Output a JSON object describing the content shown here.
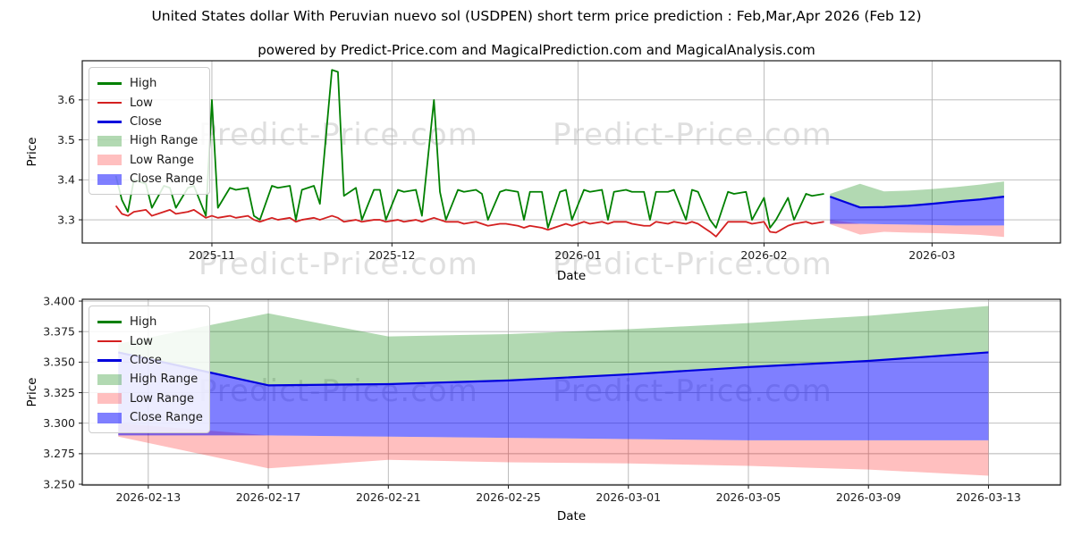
{
  "title": "United States dollar With Peruvian nuevo sol (USDPEN) short term price prediction : Feb,Mar,Apr 2026 (Feb 12)",
  "subtitle": "powered by Predict-Price.com and MagicalPrediction.com and MagicalAnalysis.com",
  "watermark": {
    "text": "Predict-Price.com",
    "color": "#dfdfdf"
  },
  "colors": {
    "high": "#008000",
    "low": "#d42020",
    "close": "#0000dd",
    "high_range": "rgba(0,128,0,0.30)",
    "low_range": "rgba(255,0,0,0.25)",
    "close_range": "rgba(0,0,255,0.50)",
    "grid": "#b5b5b5",
    "frame": "#1a1a1a",
    "tick_text": "#202020"
  },
  "legend": {
    "items": [
      {
        "label": "High",
        "swatch": "high",
        "kind": "line"
      },
      {
        "label": "Low",
        "swatch": "low",
        "kind": "line"
      },
      {
        "label": "Close",
        "swatch": "close",
        "kind": "line"
      },
      {
        "label": "High Range",
        "swatch": "high_range",
        "kind": "patch"
      },
      {
        "label": "Low Range",
        "swatch": "low_range",
        "kind": "patch"
      },
      {
        "label": "Close Range",
        "swatch": "close_range",
        "kind": "patch"
      }
    ]
  },
  "date_base": "day 0 = 2025-10-16, 1 unit = 1 day",
  "chart_data": [
    {
      "type": "line",
      "name": "full-history-and-prediction",
      "xlabel": "Date",
      "ylabel": "Price",
      "xlim_days": [
        -5.6,
        157.4
      ],
      "ylim": [
        3.242,
        3.698
      ],
      "x_ticks": [
        {
          "day": 16,
          "label": "2025-11"
        },
        {
          "day": 46,
          "label": "2025-12"
        },
        {
          "day": 77,
          "label": "2026-01"
        },
        {
          "day": 108,
          "label": "2026-02"
        },
        {
          "day": 136,
          "label": "2026-03"
        }
      ],
      "y_ticks": [
        {
          "value": 3.3,
          "label": "3.3"
        },
        {
          "value": 3.4,
          "label": "3.4"
        },
        {
          "value": 3.5,
          "label": "3.5"
        },
        {
          "value": 3.6,
          "label": "3.6"
        }
      ],
      "grid": true,
      "legend_position": "upper left",
      "series": {
        "history": {
          "days": [
            0,
            1,
            2,
            3,
            5,
            6,
            8,
            9,
            10,
            12,
            13,
            15,
            16,
            17,
            19,
            20,
            22,
            23,
            24,
            26,
            27,
            29,
            30,
            31,
            33,
            34,
            36,
            37,
            38,
            40,
            41,
            43,
            44,
            45,
            47,
            48,
            50,
            51,
            53,
            54,
            55,
            57,
            58,
            60,
            61,
            62,
            64,
            65,
            67,
            68,
            69,
            71,
            72,
            74,
            75,
            76,
            78,
            79,
            81,
            82,
            83,
            85,
            86,
            88,
            89,
            90,
            92,
            93,
            95,
            96,
            97,
            99,
            100,
            102,
            103,
            105,
            106,
            108,
            109,
            110,
            112,
            113,
            115,
            116,
            118
          ],
          "high": [
            3.41,
            3.35,
            3.32,
            3.4,
            3.39,
            3.33,
            3.385,
            3.38,
            3.33,
            3.38,
            3.385,
            3.31,
            3.6,
            3.33,
            3.38,
            3.375,
            3.38,
            3.31,
            3.3,
            3.385,
            3.38,
            3.385,
            3.3,
            3.375,
            3.385,
            3.34,
            3.675,
            3.67,
            3.36,
            3.38,
            3.3,
            3.375,
            3.375,
            3.3,
            3.375,
            3.37,
            3.375,
            3.31,
            3.6,
            3.37,
            3.3,
            3.375,
            3.37,
            3.375,
            3.365,
            3.3,
            3.37,
            3.375,
            3.37,
            3.3,
            3.37,
            3.37,
            3.28,
            3.37,
            3.375,
            3.3,
            3.375,
            3.37,
            3.375,
            3.3,
            3.37,
            3.375,
            3.37,
            3.37,
            3.3,
            3.37,
            3.37,
            3.375,
            3.3,
            3.375,
            3.37,
            3.3,
            3.28,
            3.37,
            3.365,
            3.37,
            3.3,
            3.355,
            3.28,
            3.3,
            3.355,
            3.3,
            3.365,
            3.36,
            3.365
          ],
          "low": [
            3.335,
            3.315,
            3.31,
            3.32,
            3.325,
            3.31,
            3.32,
            3.325,
            3.315,
            3.32,
            3.325,
            3.305,
            3.31,
            3.305,
            3.31,
            3.305,
            3.31,
            3.3,
            3.295,
            3.305,
            3.3,
            3.305,
            3.295,
            3.3,
            3.305,
            3.3,
            3.31,
            3.305,
            3.295,
            3.3,
            3.295,
            3.3,
            3.3,
            3.295,
            3.3,
            3.295,
            3.3,
            3.295,
            3.305,
            3.3,
            3.295,
            3.295,
            3.29,
            3.295,
            3.29,
            3.285,
            3.29,
            3.29,
            3.285,
            3.28,
            3.285,
            3.28,
            3.275,
            3.285,
            3.29,
            3.285,
            3.295,
            3.29,
            3.295,
            3.29,
            3.295,
            3.295,
            3.29,
            3.285,
            3.285,
            3.295,
            3.29,
            3.295,
            3.29,
            3.295,
            3.29,
            3.27,
            3.258,
            3.295,
            3.295,
            3.295,
            3.29,
            3.295,
            3.27,
            3.268,
            3.285,
            3.29,
            3.295,
            3.29,
            3.295
          ]
        },
        "prediction": {
          "days": [
            119,
            124,
            128,
            132,
            136,
            140,
            144,
            148
          ],
          "dates": [
            "2026-02-12",
            "2026-02-17",
            "2026-02-21",
            "2026-02-25",
            "2026-03-01",
            "2026-03-05",
            "2026-03-09",
            "2026-03-13"
          ],
          "close": [
            3.358,
            3.331,
            3.332,
            3.335,
            3.34,
            3.346,
            3.351,
            3.358
          ],
          "high_range_upper": [
            3.365,
            3.39,
            3.371,
            3.373,
            3.377,
            3.382,
            3.388,
            3.396
          ],
          "high_range_lower": [
            3.358,
            3.331,
            3.332,
            3.335,
            3.34,
            3.346,
            3.351,
            3.358
          ],
          "close_range_upper": [
            3.358,
            3.331,
            3.332,
            3.335,
            3.34,
            3.346,
            3.351,
            3.358
          ],
          "close_range_lower": [
            3.29,
            3.29,
            3.289,
            3.288,
            3.287,
            3.286,
            3.286,
            3.286
          ],
          "low_range_upper": [
            3.3,
            3.29,
            3.289,
            3.288,
            3.287,
            3.286,
            3.286,
            3.286
          ],
          "low_range_lower": [
            3.289,
            3.263,
            3.27,
            3.268,
            3.267,
            3.265,
            3.262,
            3.257
          ]
        }
      }
    },
    {
      "type": "line",
      "name": "prediction-detail",
      "xlabel": "Date",
      "ylabel": "Price",
      "xlim_days": [
        117.8,
        150.4
      ],
      "ylim": [
        3.2493,
        3.4015
      ],
      "x_ticks": [
        {
          "day": 120,
          "label": "2026-02-13"
        },
        {
          "day": 124,
          "label": "2026-02-17"
        },
        {
          "day": 128,
          "label": "2026-02-21"
        },
        {
          "day": 132,
          "label": "2026-02-25"
        },
        {
          "day": 136,
          "label": "2026-03-01"
        },
        {
          "day": 140,
          "label": "2026-03-05"
        },
        {
          "day": 144,
          "label": "2026-03-09"
        },
        {
          "day": 148,
          "label": "2026-03-13"
        }
      ],
      "y_ticks": [
        {
          "value": 3.25,
          "label": "3.250"
        },
        {
          "value": 3.275,
          "label": "3.275"
        },
        {
          "value": 3.3,
          "label": "3.300"
        },
        {
          "value": 3.325,
          "label": "3.325"
        },
        {
          "value": 3.35,
          "label": "3.350"
        },
        {
          "value": 3.375,
          "label": "3.375"
        },
        {
          "value": 3.4,
          "label": "3.400"
        }
      ],
      "grid": true,
      "legend_position": "upper left",
      "series": {
        "prediction": {
          "days": [
            119,
            124,
            128,
            132,
            136,
            140,
            144,
            148
          ],
          "dates": [
            "2026-02-12",
            "2026-02-17",
            "2026-02-21",
            "2026-02-25",
            "2026-03-01",
            "2026-03-05",
            "2026-03-09",
            "2026-03-13"
          ],
          "close": [
            3.358,
            3.331,
            3.332,
            3.335,
            3.34,
            3.346,
            3.351,
            3.358
          ],
          "high_range_upper": [
            3.365,
            3.39,
            3.371,
            3.373,
            3.377,
            3.382,
            3.388,
            3.396
          ],
          "high_range_lower": [
            3.358,
            3.331,
            3.332,
            3.335,
            3.34,
            3.346,
            3.351,
            3.358
          ],
          "close_range_upper": [
            3.358,
            3.331,
            3.332,
            3.335,
            3.34,
            3.346,
            3.351,
            3.358
          ],
          "close_range_lower": [
            3.29,
            3.29,
            3.289,
            3.288,
            3.287,
            3.286,
            3.286,
            3.286
          ],
          "low_range_upper": [
            3.3,
            3.29,
            3.289,
            3.288,
            3.287,
            3.286,
            3.286,
            3.286
          ],
          "low_range_lower": [
            3.289,
            3.263,
            3.27,
            3.268,
            3.267,
            3.265,
            3.262,
            3.257
          ]
        }
      }
    }
  ]
}
